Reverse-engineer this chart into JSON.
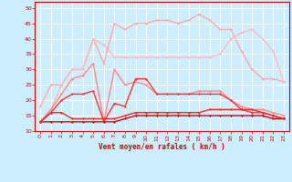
{
  "background_color": "#cceeff",
  "grid_color": "#ffffff",
  "xlabel": "Vent moyen/en rafales ( km/h )",
  "xlabel_color": "#cc0000",
  "ylim": [
    10,
    52
  ],
  "xlim": [
    -0.5,
    23.5
  ],
  "yticks": [
    10,
    15,
    20,
    25,
    30,
    35,
    40,
    45,
    50
  ],
  "xticks": [
    0,
    1,
    2,
    3,
    4,
    5,
    6,
    7,
    8,
    9,
    10,
    11,
    12,
    13,
    14,
    15,
    16,
    17,
    18,
    19,
    20,
    21,
    22,
    23
  ],
  "series": [
    {
      "x": [
        0,
        1,
        2,
        3,
        4,
        5,
        6,
        7,
        8,
        9,
        10,
        11,
        12,
        13,
        14,
        15,
        16,
        17,
        18,
        19,
        20,
        21,
        22,
        23
      ],
      "y": [
        18,
        25,
        25,
        30,
        30,
        40,
        32,
        45,
        43,
        45,
        45,
        46,
        46,
        45,
        46,
        48,
        46,
        43,
        43,
        36,
        30,
        27,
        27,
        26
      ],
      "color": "#ffaaaa",
      "linewidth": 1.0
    },
    {
      "x": [
        0,
        1,
        2,
        3,
        4,
        5,
        6,
        7,
        8,
        9,
        10,
        11,
        12,
        13,
        14,
        15,
        16,
        17,
        18,
        19,
        20,
        21,
        22,
        23
      ],
      "y": [
        13,
        17,
        25,
        30,
        30,
        40,
        38,
        34,
        34,
        34,
        34,
        34,
        34,
        34,
        34,
        34,
        34,
        35,
        40,
        42,
        43,
        40,
        36,
        26
      ],
      "color": "#ffbbbb",
      "linewidth": 1.0
    },
    {
      "x": [
        0,
        1,
        2,
        3,
        4,
        5,
        6,
        7,
        8,
        9,
        10,
        11,
        12,
        13,
        14,
        15,
        16,
        17,
        18,
        19,
        20,
        21,
        22,
        23
      ],
      "y": [
        13,
        17,
        22,
        27,
        28,
        32,
        13,
        30,
        25,
        26,
        25,
        22,
        22,
        22,
        22,
        23,
        23,
        23,
        20,
        18,
        17,
        17,
        16,
        15
      ],
      "color": "#ff8888",
      "linewidth": 1.0
    },
    {
      "x": [
        0,
        1,
        2,
        3,
        4,
        5,
        6,
        7,
        8,
        9,
        10,
        11,
        12,
        13,
        14,
        15,
        16,
        17,
        18,
        19,
        20,
        21,
        22,
        23
      ],
      "y": [
        13,
        16,
        20,
        22,
        22,
        23,
        13,
        19,
        18,
        27,
        27,
        22,
        22,
        22,
        22,
        22,
        22,
        22,
        20,
        17,
        16,
        16,
        15,
        14
      ],
      "color": "#ff3333",
      "linewidth": 1.0
    },
    {
      "x": [
        0,
        1,
        2,
        3,
        4,
        5,
        6,
        7,
        8,
        9,
        10,
        11,
        12,
        13,
        14,
        15,
        16,
        17,
        18,
        19,
        20,
        21,
        22,
        23
      ],
      "y": [
        13,
        13,
        13,
        13,
        13,
        13,
        13,
        13,
        14,
        15,
        15,
        15,
        15,
        15,
        15,
        15,
        15,
        15,
        15,
        15,
        15,
        15,
        14,
        14
      ],
      "color": "#cc0000",
      "linewidth": 1.0
    },
    {
      "x": [
        0,
        1,
        2,
        3,
        4,
        5,
        6,
        7,
        8,
        9,
        10,
        11,
        12,
        13,
        14,
        15,
        16,
        17,
        18,
        19,
        20,
        21,
        22,
        23
      ],
      "y": [
        13,
        16,
        16,
        14,
        14,
        14,
        14,
        14,
        15,
        16,
        16,
        16,
        16,
        16,
        16,
        16,
        17,
        17,
        17,
        17,
        17,
        16,
        15,
        14
      ],
      "color": "#ff2222",
      "linewidth": 1.0
    }
  ]
}
